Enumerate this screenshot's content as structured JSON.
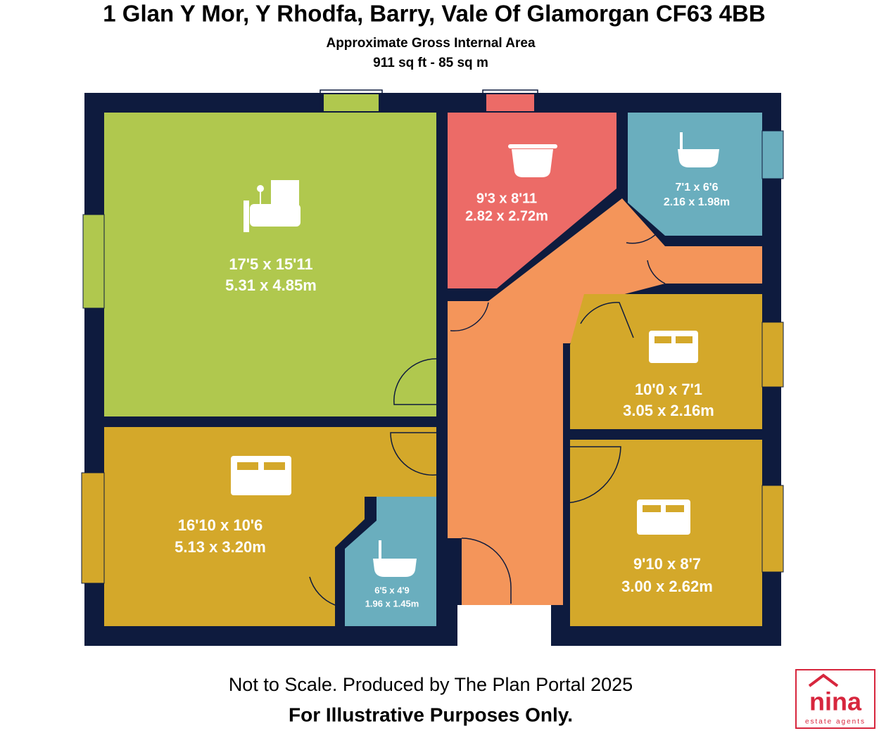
{
  "header": {
    "title": "1 Glan Y Mor, Y Rhodfa, Barry, Vale Of Glamorgan CF63 4BB",
    "subtitle": "Approximate Gross Internal Area",
    "area": "911 sq ft - 85 sq m"
  },
  "rooms": [
    {
      "imperial": "17'5 x 15'11",
      "metric": "5.31 x 4.85m"
    },
    {
      "imperial": "9'3 x 8'11",
      "metric": "2.82 x 2.72m"
    },
    {
      "imperial": "7'1 x 6'6",
      "metric": "2.16 x 1.98m"
    },
    {
      "imperial": "10'0 x 7'1",
      "metric": "3.05 x 2.16m"
    },
    {
      "imperial": "16'10 x 10'6",
      "metric": "5.13 x 3.20m"
    },
    {
      "imperial": "6'5 x 4'9",
      "metric": "1.96 x 1.45m"
    },
    {
      "imperial": "9'10 x 8'7",
      "metric": "3.00 x 2.62m"
    }
  ],
  "footer": {
    "note": "Not to Scale. Produced by The Plan Portal 2025",
    "disclaimer": "For Illustrative Purposes Only."
  },
  "logo": {
    "name": "nina",
    "tagline": "estate agents"
  }
}
